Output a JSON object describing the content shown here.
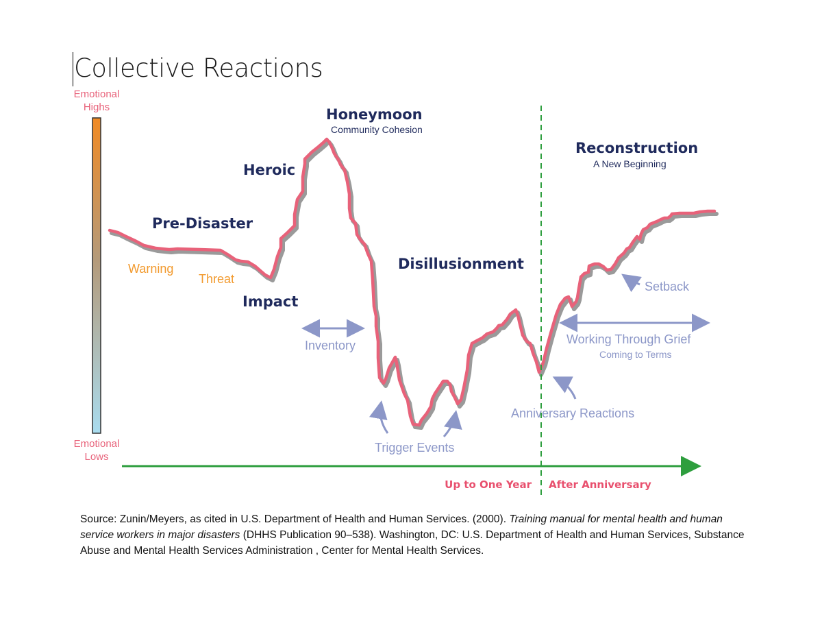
{
  "title": "Collective Reactions",
  "scale": {
    "top": [
      "Emotional",
      "Highs"
    ],
    "bottom": [
      "Emotional",
      "Lows"
    ]
  },
  "phases": [
    {
      "label": "Pre-Disaster",
      "sub": ""
    },
    {
      "label": "Heroic",
      "sub": ""
    },
    {
      "label": "Honeymoon",
      "sub": "Community Cohesion"
    },
    {
      "label": "Impact",
      "sub": ""
    },
    {
      "label": "Disillusionment",
      "sub": ""
    },
    {
      "label": "Reconstruction",
      "sub": "A New Beginning"
    }
  ],
  "markers": [
    "Warning",
    "Threat"
  ],
  "annotations": {
    "inventory": "Inventory",
    "trigger_events": "Trigger Events",
    "anniversary_reactions": "Anniversary Reactions",
    "setback": "Setback",
    "working_through_grief": "Working Through Grief",
    "coming_to_terms": "Coming to Terms"
  },
  "timeline": {
    "before": "Up to One Year",
    "after": "After Anniversary"
  },
  "colors": {
    "curve": "#e8627a",
    "curve_shadow": "#9a9a9a",
    "phase_label": "#1f2a5c",
    "marker_label": "#f29a2e",
    "annotation": "#8c97c8",
    "timeline": "#2e9e3e",
    "timeline_label": "#e8506e",
    "scale_top": "#f08a24",
    "scale_bottom": "#a9dcef"
  },
  "source": {
    "prefix": "Source: Zunin/Meyers, as cited in  U.S. Department of Health and Human Services.  (2000). ",
    "italic": "Training manual for mental health and human service workers in major disasters",
    "suffix": " (DHHS Publication 90–538).  Washington, DC: U.S. Department of Health and Human Services, Substance Abuse and Mental Health Services Administration , Center for Mental Health Services."
  }
}
